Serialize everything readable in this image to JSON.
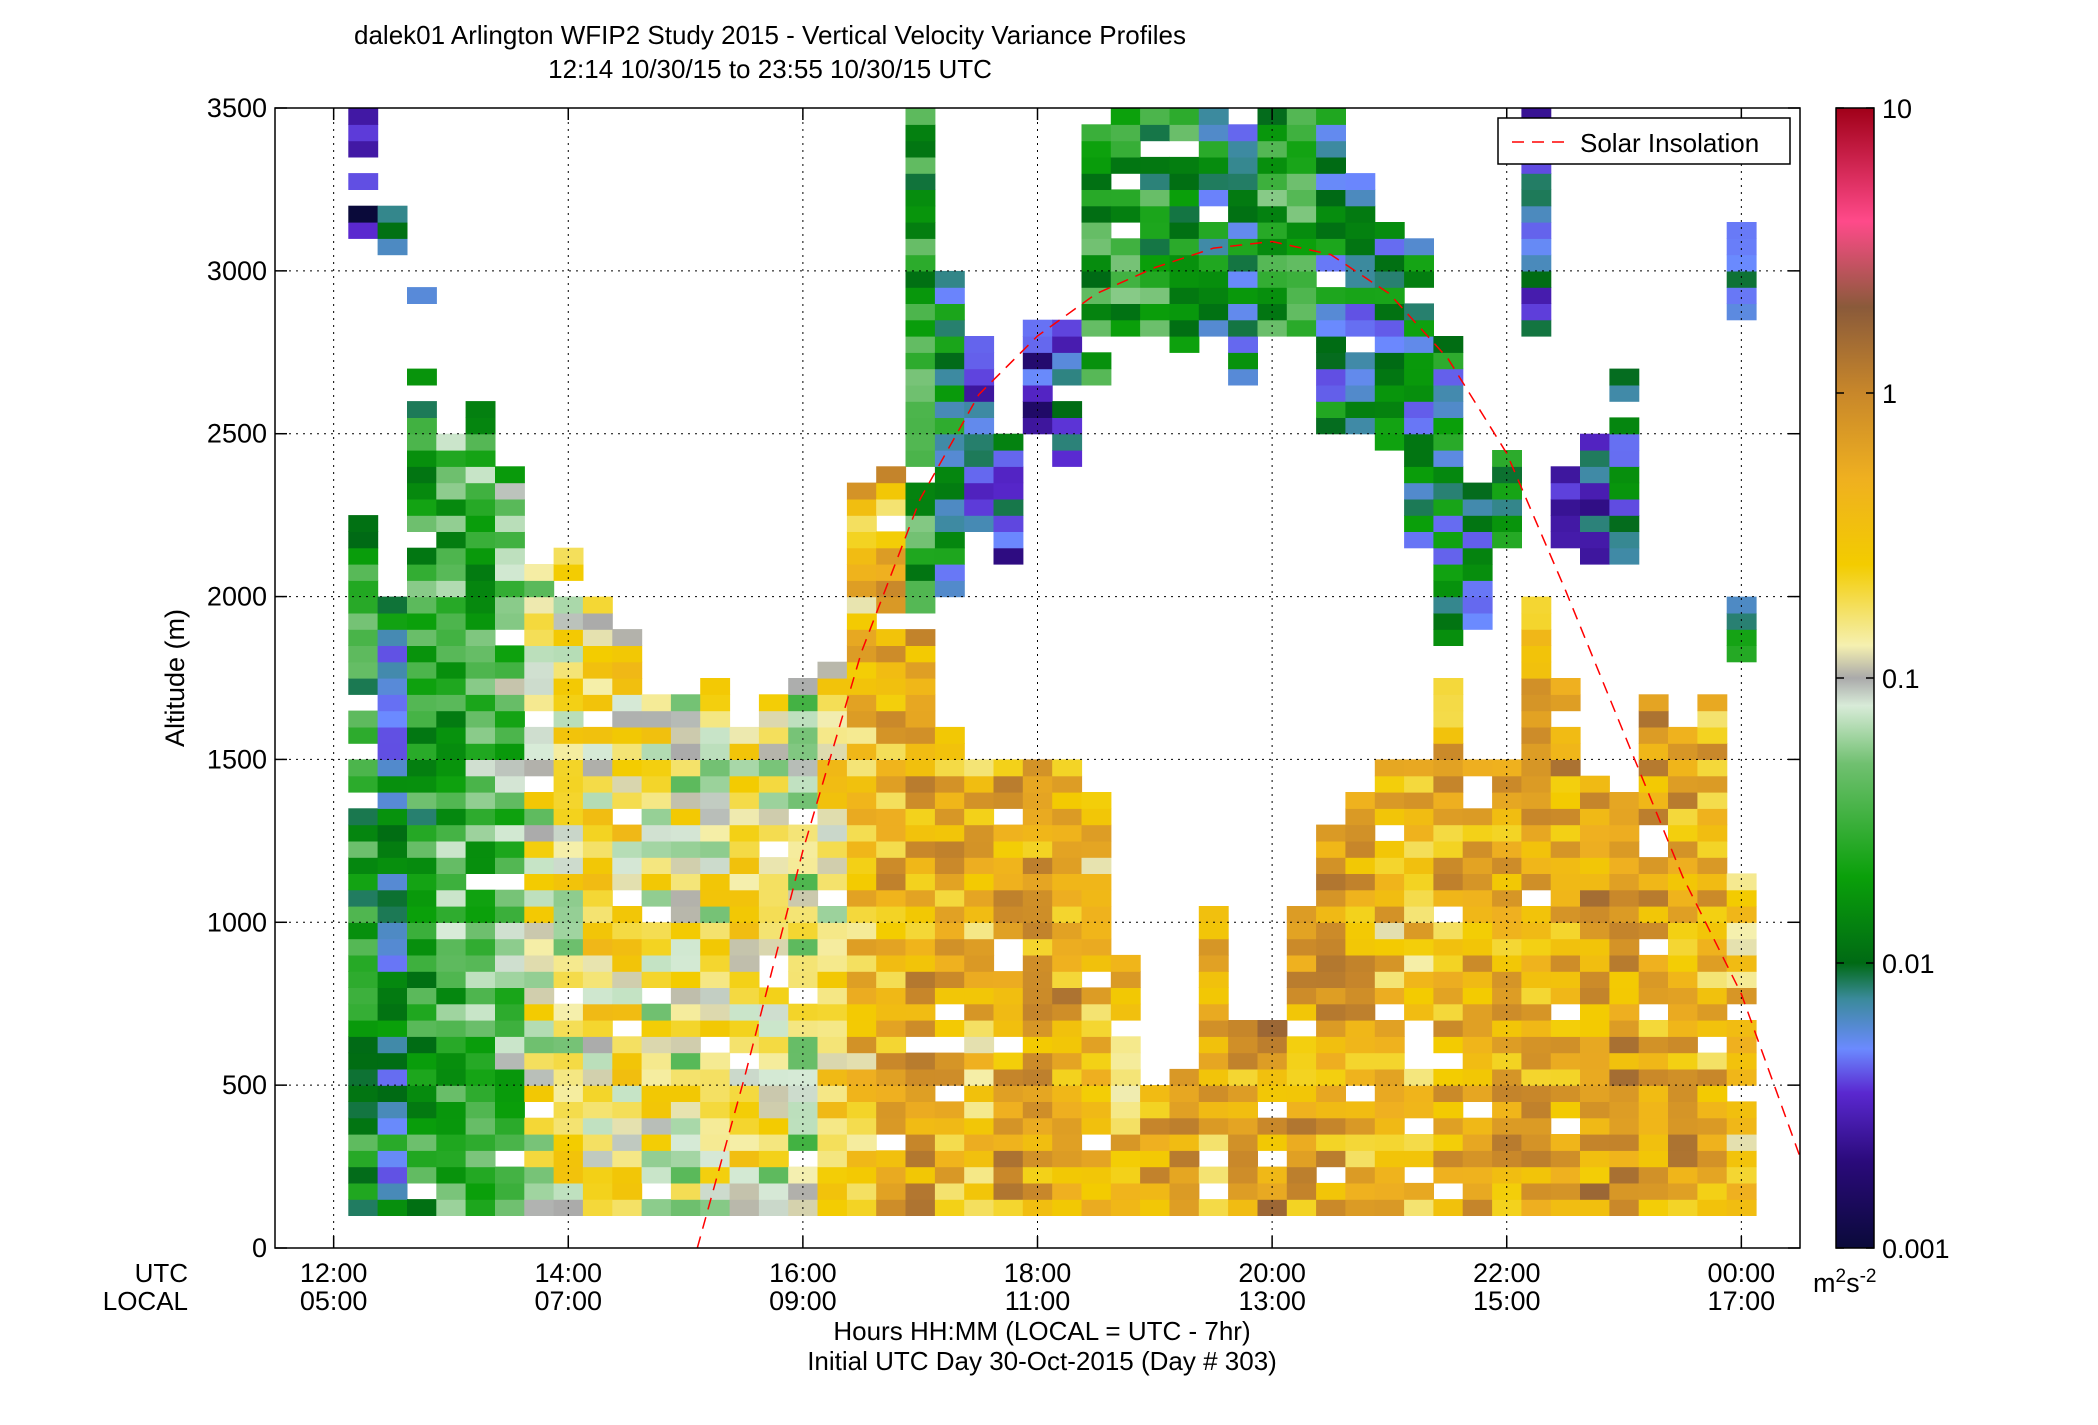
{
  "chart_data": {
    "type": "heatmap",
    "title": "dalek01 Arlington WFIP2 Study 2015 - Vertical Velocity Variance Profiles",
    "subtitle": "12:14 10/30/15 to 23:55 10/30/15  UTC",
    "ylabel": "Altitude (m)",
    "xlabel": "Hours HH:MM  (LOCAL = UTC - 7hr)",
    "xlabel2": "Initial UTC Day 30-Oct-2015 (Day # 303)",
    "row_label_utc": "UTC",
    "row_label_local": "LOCAL",
    "xlim": [
      11.5,
      24.5
    ],
    "ylim": [
      0,
      3500
    ],
    "x_ticks": [
      {
        "h": 12,
        "utc": "12:00",
        "local": "05:00"
      },
      {
        "h": 14,
        "utc": "14:00",
        "local": "07:00"
      },
      {
        "h": 16,
        "utc": "16:00",
        "local": "09:00"
      },
      {
        "h": 18,
        "utc": "18:00",
        "local": "11:00"
      },
      {
        "h": 20,
        "utc": "20:00",
        "local": "13:00"
      },
      {
        "h": 22,
        "utc": "22:00",
        "local": "15:00"
      },
      {
        "h": 24,
        "utc": "00:00",
        "local": "17:00"
      }
    ],
    "y_ticks": [
      0,
      500,
      1000,
      1500,
      2000,
      2500,
      3000,
      3500
    ],
    "legend": {
      "label": "Solar Insolation",
      "placement": "top-right",
      "color": "#ff0000",
      "style": "dashed"
    },
    "colorbar": {
      "scale": "log",
      "range": [
        0.001,
        10
      ],
      "ticks": [
        {
          "v": 0.001,
          "label": "0.001"
        },
        {
          "v": 0.01,
          "label": "0.01"
        },
        {
          "v": 0.1,
          "label": "0.1"
        },
        {
          "v": 1,
          "label": "1"
        },
        {
          "v": 10,
          "label": "10"
        }
      ],
      "units": "m",
      "units_sup": "2",
      "units_suffix": "s",
      "units_suffix_sup": "-2",
      "stops": [
        {
          "v": 0.001,
          "color": "#0a0a3a"
        },
        {
          "v": 0.002,
          "color": "#2a0a7a"
        },
        {
          "v": 0.0035,
          "color": "#5a28d0"
        },
        {
          "v": 0.005,
          "color": "#6b8aff"
        },
        {
          "v": 0.0075,
          "color": "#3a8a9a"
        },
        {
          "v": 0.01,
          "color": "#006a14"
        },
        {
          "v": 0.02,
          "color": "#0aa00a"
        },
        {
          "v": 0.05,
          "color": "#70c070"
        },
        {
          "v": 0.08,
          "color": "#d8ebd8"
        },
        {
          "v": 0.1,
          "color": "#aaaaaa"
        },
        {
          "v": 0.13,
          "color": "#f5f0b0"
        },
        {
          "v": 0.25,
          "color": "#f3cc00"
        },
        {
          "v": 0.5,
          "color": "#efb020"
        },
        {
          "v": 1,
          "color": "#c8872a"
        },
        {
          "v": 2,
          "color": "#8a5a3a"
        },
        {
          "v": 4,
          "color": "#ff4a8a"
        },
        {
          "v": 10,
          "color": "#a00018"
        }
      ]
    },
    "solar_insolation_curve": {
      "x": [
        15.1,
        15.5,
        16.0,
        16.5,
        17.0,
        17.5,
        18.0,
        18.5,
        19.0,
        19.5,
        20.0,
        20.5,
        21.0,
        21.5,
        22.0,
        22.5,
        23.0,
        23.5,
        24.0,
        24.5
      ],
      "y": [
        0,
        520,
        1220,
        1830,
        2300,
        2620,
        2800,
        2930,
        3010,
        3070,
        3090,
        3050,
        2930,
        2730,
        2440,
        2020,
        1580,
        1140,
        780,
        280
      ]
    },
    "time_step_hours": 0.25,
    "altitude_step_m": 50,
    "columns": [
      {
        "t": 12.25,
        "top": 2300,
        "mean": 0.005,
        "segments": [
          [
            100,
            2300,
            0.02
          ],
          [
            3100,
            3500,
            0.002
          ]
        ]
      },
      {
        "t": 12.5,
        "top": 2000,
        "mean": 0.006,
        "segments": [
          [
            100,
            2000,
            0.01
          ],
          [
            3050,
            3200,
            0.004
          ]
        ]
      },
      {
        "t": 12.75,
        "top": 2700,
        "mean": 0.008,
        "segments": [
          [
            100,
            2700,
            0.02
          ],
          [
            2850,
            2950,
            0.003
          ]
        ]
      },
      {
        "t": 13.0,
        "top": 2500,
        "mean": 0.015,
        "segments": [
          [
            100,
            2500,
            0.03
          ]
        ]
      },
      {
        "t": 13.25,
        "top": 2600,
        "mean": 0.02,
        "segments": [
          [
            100,
            2600,
            0.03
          ]
        ]
      },
      {
        "t": 13.5,
        "top": 2400,
        "mean": 0.03,
        "segments": [
          [
            100,
            2400,
            0.04
          ]
        ]
      },
      {
        "t": 13.75,
        "top": 2100,
        "mean": 0.1,
        "segments": [
          [
            100,
            2100,
            0.1
          ]
        ]
      },
      {
        "t": 14.0,
        "top": 2150,
        "mean": 0.12,
        "segments": [
          [
            100,
            2150,
            0.12
          ]
        ]
      },
      {
        "t": 14.25,
        "top": 2000,
        "mean": 0.15,
        "segments": [
          [
            100,
            2000,
            0.15
          ]
        ]
      },
      {
        "t": 14.5,
        "top": 1900,
        "mean": 0.15,
        "segments": [
          [
            100,
            1900,
            0.15
          ]
        ]
      },
      {
        "t": 14.75,
        "top": 1700,
        "mean": 0.12,
        "segments": [
          [
            100,
            1700,
            0.12
          ]
        ]
      },
      {
        "t": 15.0,
        "top": 1700,
        "mean": 0.1,
        "segments": [
          [
            100,
            1700,
            0.1
          ]
        ]
      },
      {
        "t": 15.25,
        "top": 1750,
        "mean": 0.12,
        "segments": [
          [
            100,
            1750,
            0.12
          ]
        ]
      },
      {
        "t": 15.5,
        "top": 1600,
        "mean": 0.15,
        "segments": [
          [
            100,
            1600,
            0.15
          ]
        ]
      },
      {
        "t": 15.75,
        "top": 1700,
        "mean": 0.1,
        "segments": [
          [
            100,
            1700,
            0.1
          ]
        ]
      },
      {
        "t": 16.0,
        "top": 1750,
        "mean": 0.08,
        "segments": [
          [
            100,
            1750,
            0.08
          ]
        ]
      },
      {
        "t": 16.25,
        "top": 1850,
        "mean": 0.15,
        "segments": [
          [
            100,
            1850,
            0.15
          ]
        ]
      },
      {
        "t": 16.5,
        "top": 2350,
        "mean": 0.3,
        "segments": [
          [
            100,
            2350,
            0.3
          ]
        ]
      },
      {
        "t": 16.75,
        "top": 2400,
        "mean": 0.4,
        "segments": [
          [
            100,
            2400,
            0.4
          ]
        ]
      },
      {
        "t": 17.0,
        "top": 3500,
        "mean": 0.5,
        "segments": [
          [
            100,
            1900,
            0.5
          ],
          [
            1950,
            3500,
            0.02
          ]
        ]
      },
      {
        "t": 17.25,
        "top": 3000,
        "mean": 0.4,
        "segments": [
          [
            100,
            1600,
            0.4
          ],
          [
            2000,
            3000,
            0.01
          ]
        ]
      },
      {
        "t": 17.5,
        "top": 2800,
        "mean": 0.3,
        "segments": [
          [
            100,
            1550,
            0.3
          ],
          [
            2200,
            2800,
            0.005
          ]
        ]
      },
      {
        "t": 17.75,
        "top": 2500,
        "mean": 0.5,
        "segments": [
          [
            100,
            1500,
            0.5
          ],
          [
            2100,
            2500,
            0.005
          ]
        ]
      },
      {
        "t": 18.0,
        "top": 2850,
        "mean": 0.5,
        "segments": [
          [
            100,
            1500,
            0.5
          ],
          [
            2500,
            2850,
            0.004
          ]
        ]
      },
      {
        "t": 18.25,
        "top": 2850,
        "mean": 0.5,
        "segments": [
          [
            100,
            1500,
            0.5
          ],
          [
            2400,
            2850,
            0.005
          ]
        ]
      },
      {
        "t": 18.5,
        "top": 3500,
        "mean": 0.3,
        "segments": [
          [
            100,
            1400,
            0.3
          ],
          [
            2650,
            3500,
            0.02
          ]
        ]
      },
      {
        "t": 18.75,
        "top": 3500,
        "mean": 0.3,
        "segments": [
          [
            100,
            900,
            0.3
          ],
          [
            2800,
            3500,
            0.02
          ]
        ]
      },
      {
        "t": 19.0,
        "top": 3500,
        "mean": 0.4,
        "segments": [
          [
            100,
            500,
            0.4
          ],
          [
            2800,
            3500,
            0.02
          ]
        ]
      },
      {
        "t": 19.25,
        "top": 3500,
        "mean": 0.5,
        "segments": [
          [
            100,
            550,
            0.5
          ],
          [
            2750,
            3500,
            0.02
          ]
        ]
      },
      {
        "t": 19.5,
        "top": 3500,
        "mean": 0.4,
        "segments": [
          [
            100,
            1050,
            0.4
          ],
          [
            2800,
            3500,
            0.01
          ]
        ]
      },
      {
        "t": 19.75,
        "top": 3450,
        "mean": 0.5,
        "segments": [
          [
            100,
            700,
            0.5
          ],
          [
            2650,
            3450,
            0.01
          ]
        ]
      },
      {
        "t": 20.0,
        "top": 3500,
        "mean": 0.6,
        "segments": [
          [
            100,
            700,
            0.6
          ],
          [
            2800,
            3500,
            0.02
          ]
        ]
      },
      {
        "t": 20.25,
        "top": 3500,
        "mean": 0.5,
        "segments": [
          [
            100,
            1050,
            0.5
          ],
          [
            2800,
            3500,
            0.02
          ]
        ]
      },
      {
        "t": 20.5,
        "top": 3500,
        "mean": 0.5,
        "segments": [
          [
            100,
            1300,
            0.5
          ],
          [
            2500,
            3500,
            0.01
          ]
        ]
      },
      {
        "t": 20.75,
        "top": 3300,
        "mean": 0.4,
        "segments": [
          [
            100,
            1400,
            0.4
          ],
          [
            2500,
            3300,
            0.01
          ]
        ]
      },
      {
        "t": 21.0,
        "top": 3150,
        "mean": 0.3,
        "segments": [
          [
            100,
            1500,
            0.3
          ],
          [
            2450,
            3150,
            0.01
          ]
        ]
      },
      {
        "t": 21.25,
        "top": 3100,
        "mean": 0.3,
        "segments": [
          [
            100,
            1500,
            0.3
          ],
          [
            2150,
            3100,
            0.01
          ]
        ]
      },
      {
        "t": 21.5,
        "top": 2800,
        "mean": 0.4,
        "segments": [
          [
            100,
            1750,
            0.4
          ],
          [
            1850,
            2800,
            0.01
          ]
        ]
      },
      {
        "t": 21.75,
        "top": 2400,
        "mean": 0.5,
        "segments": [
          [
            100,
            1500,
            0.5
          ],
          [
            1900,
            2400,
            0.01
          ]
        ]
      },
      {
        "t": 22.0,
        "top": 2450,
        "mean": 0.5,
        "segments": [
          [
            100,
            1500,
            0.5
          ],
          [
            2100,
            2450,
            0.01
          ]
        ]
      },
      {
        "t": 22.25,
        "top": 3500,
        "mean": 0.5,
        "segments": [
          [
            100,
            2000,
            0.5
          ],
          [
            2800,
            3500,
            0.005
          ]
        ]
      },
      {
        "t": 22.5,
        "top": 2400,
        "mean": 0.5,
        "segments": [
          [
            100,
            1750,
            0.5
          ],
          [
            2150,
            2400,
            0.005
          ]
        ]
      },
      {
        "t": 22.75,
        "top": 2500,
        "mean": 0.6,
        "segments": [
          [
            100,
            1450,
            0.6
          ],
          [
            2100,
            2500,
            0.005
          ]
        ]
      },
      {
        "t": 23.0,
        "top": 2700,
        "mean": 0.6,
        "segments": [
          [
            100,
            1400,
            0.6
          ],
          [
            2100,
            2700,
            0.008
          ]
        ]
      },
      {
        "t": 23.25,
        "top": 1700,
        "mean": 0.5,
        "segments": [
          [
            100,
            1700,
            0.5
          ]
        ]
      },
      {
        "t": 23.5,
        "top": 1600,
        "mean": 0.5,
        "segments": [
          [
            100,
            1600,
            0.5
          ]
        ]
      },
      {
        "t": 23.75,
        "top": 1700,
        "mean": 0.4,
        "segments": [
          [
            100,
            1700,
            0.4
          ]
        ]
      },
      {
        "t": 24.0,
        "top": 1150,
        "mean": 0.3,
        "segments": [
          [
            100,
            1150,
            0.3
          ],
          [
            1800,
            2000,
            0.01
          ],
          [
            2850,
            3150,
            0.004
          ]
        ]
      }
    ]
  }
}
